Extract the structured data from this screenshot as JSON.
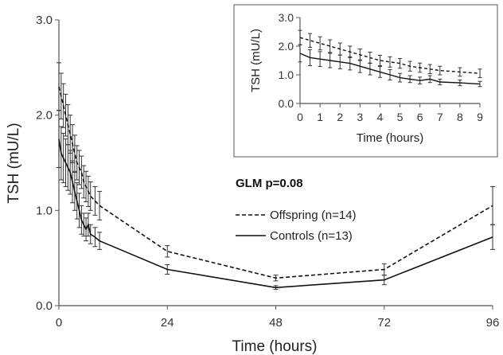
{
  "chart_data": {
    "type": "line",
    "xlabel": "Time (hours)",
    "ylabel": "TSH (mU/L)",
    "xlim": [
      0,
      96
    ],
    "ylim": [
      0,
      3.0
    ],
    "xticks": [
      0,
      24,
      48,
      72,
      96
    ],
    "yticks": [
      0.0,
      1.0,
      2.0,
      3.0
    ],
    "ytick_labels": [
      "0.0",
      "1.0",
      "2.0",
      "3.0"
    ],
    "annotation": "GLM p=0.08",
    "legend_position": "center-right",
    "series": [
      {
        "name": "Offspring (n=14)",
        "style": "dashed",
        "x": [
          0,
          0.5,
          1,
          1.5,
          2,
          2.5,
          3,
          3.5,
          4,
          4.5,
          5,
          5.5,
          6,
          6.5,
          7,
          8,
          9,
          24,
          48,
          72,
          96
        ],
        "y": [
          2.3,
          2.2,
          2.1,
          2.0,
          1.9,
          1.8,
          1.7,
          1.6,
          1.5,
          1.45,
          1.4,
          1.3,
          1.25,
          1.2,
          1.15,
          1.1,
          1.05,
          0.57,
          0.29,
          0.38,
          1.05
        ],
        "err": [
          0.25,
          0.24,
          0.23,
          0.22,
          0.21,
          0.2,
          0.2,
          0.19,
          0.18,
          0.18,
          0.17,
          0.17,
          0.16,
          0.16,
          0.15,
          0.15,
          0.15,
          0.06,
          0.03,
          0.06,
          0.2
        ]
      },
      {
        "name": "Controls (n=13)",
        "style": "solid",
        "x": [
          0,
          0.5,
          1,
          1.5,
          2,
          2.5,
          3,
          3.5,
          4,
          4.5,
          5,
          5.5,
          6,
          6.5,
          7,
          8,
          9,
          24,
          48,
          72,
          96
        ],
        "y": [
          1.75,
          1.6,
          1.55,
          1.5,
          1.45,
          1.4,
          1.3,
          1.2,
          1.1,
          1.0,
          0.9,
          0.85,
          0.8,
          0.85,
          0.75,
          0.72,
          0.68,
          0.38,
          0.19,
          0.27,
          0.72
        ],
        "err": [
          0.3,
          0.28,
          0.26,
          0.25,
          0.24,
          0.23,
          0.22,
          0.2,
          0.19,
          0.18,
          0.15,
          0.12,
          0.12,
          0.12,
          0.1,
          0.1,
          0.09,
          0.05,
          0.02,
          0.05,
          0.13
        ]
      }
    ],
    "inset": {
      "xlabel": "Time (hours)",
      "ylabel": "TSH (mU/L)",
      "xlim": [
        0,
        9
      ],
      "ylim": [
        0,
        3.0
      ],
      "xticks": [
        0,
        1,
        2,
        3,
        4,
        5,
        6,
        7,
        8,
        9
      ],
      "yticks": [
        0.0,
        1.0,
        2.0,
        3.0
      ],
      "ytick_labels": [
        "0.0",
        "1.0",
        "2.0",
        "3.0"
      ]
    }
  }
}
